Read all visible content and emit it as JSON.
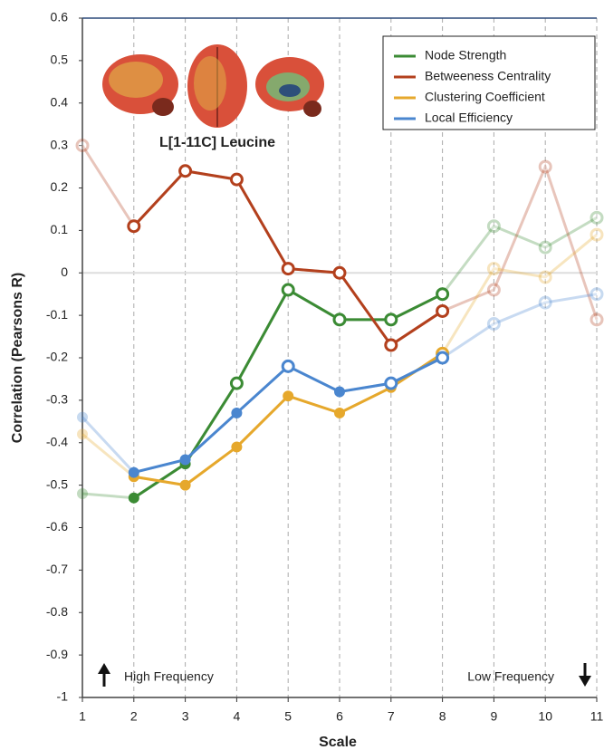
{
  "chart_data": {
    "type": "line",
    "annotation": "L[1-11C] Leucine",
    "x_label": "Scale",
    "y_label": "Correlation (Pearsons R)",
    "left_note": "High Frequency",
    "right_note": "Low Frequency",
    "x": [
      1,
      2,
      3,
      4,
      5,
      6,
      7,
      8,
      9,
      10,
      11
    ],
    "xlim": [
      1,
      11
    ],
    "xticks": [
      1,
      2,
      3,
      4,
      5,
      6,
      7,
      8,
      9,
      10,
      11
    ],
    "ylim": [
      -1,
      0.6
    ],
    "yticks": [
      0.6,
      0.5,
      0.4,
      0.3,
      0.2,
      0.1,
      0,
      -0.1,
      -0.2,
      -0.3,
      -0.4,
      -0.5,
      -0.6,
      -0.7,
      -0.8,
      -0.9,
      -1
    ],
    "grid": true,
    "legend": "upper right",
    "emphasis_xlim": [
      2,
      8
    ],
    "series": [
      {
        "name": "Node Strength",
        "color": "#3b8b34",
        "values": [
          -0.52,
          -0.53,
          -0.45,
          -0.26,
          -0.04,
          -0.11,
          -0.11,
          -0.05,
          0.11,
          0.06,
          0.13
        ],
        "hollow": [
          false,
          false,
          false,
          true,
          true,
          true,
          true,
          true,
          true,
          true,
          true
        ]
      },
      {
        "name": "Betweeness Centrality",
        "color": "#b3401d",
        "values": [
          0.3,
          0.11,
          0.24,
          0.22,
          0.01,
          0.0,
          -0.17,
          -0.09,
          -0.04,
          0.25,
          -0.11
        ],
        "hollow": [
          true,
          true,
          true,
          true,
          true,
          true,
          true,
          true,
          true,
          true,
          true
        ]
      },
      {
        "name": "Clustering Coefficient",
        "color": "#e6a82c",
        "values": [
          -0.38,
          -0.48,
          -0.5,
          -0.41,
          -0.29,
          -0.33,
          -0.27,
          -0.19,
          0.01,
          -0.01,
          0.09
        ],
        "hollow": [
          false,
          false,
          false,
          false,
          false,
          false,
          false,
          true,
          true,
          true,
          true
        ]
      },
      {
        "name": "Local Efficiency",
        "color": "#4a86cf",
        "values": [
          -0.34,
          -0.47,
          -0.44,
          -0.33,
          -0.22,
          -0.28,
          -0.26,
          -0.2,
          -0.12,
          -0.07,
          -0.05
        ],
        "hollow": [
          false,
          false,
          false,
          false,
          true,
          false,
          true,
          true,
          true,
          true,
          true
        ]
      }
    ]
  }
}
